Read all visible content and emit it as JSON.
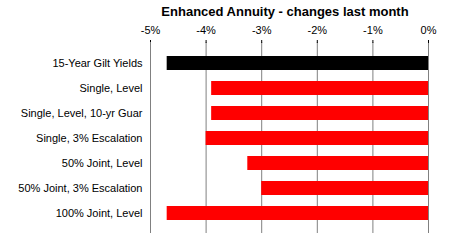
{
  "chart_data": {
    "type": "bar",
    "title": "Enhanced Annuity - changes last month",
    "orientation": "horizontal",
    "categories": [
      "15-Year Gilt Yields",
      "Single, Level",
      "Single, Level, 10-yr Guar",
      "Single, 3% Escalation",
      "50% Joint, Level",
      "50% Joint, 3% Escalation",
      "100% Joint, Level"
    ],
    "values": [
      -4.7,
      -3.9,
      -3.9,
      -4.0,
      -3.25,
      -3.0,
      -4.7
    ],
    "colors": [
      "#000000",
      "#ff0000",
      "#ff0000",
      "#ff0000",
      "#ff0000",
      "#ff0000",
      "#ff0000"
    ],
    "xlim": [
      -5,
      0
    ],
    "xticks": [
      {
        "value": -5,
        "label": "-5%"
      },
      {
        "value": -4,
        "label": "-4%"
      },
      {
        "value": -3,
        "label": "-3%"
      },
      {
        "value": -2,
        "label": "-2%"
      },
      {
        "value": -1,
        "label": "-1%"
      },
      {
        "value": 0,
        "label": "0%"
      }
    ],
    "grid": true
  }
}
